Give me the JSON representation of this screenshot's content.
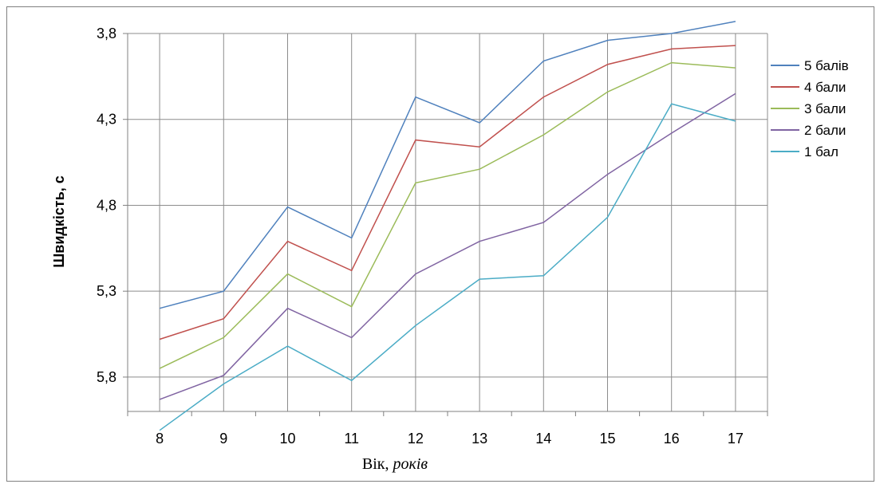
{
  "chart_data": {
    "type": "line",
    "x": [
      8,
      9,
      10,
      11,
      12,
      13,
      14,
      15,
      16,
      17
    ],
    "xlabel": "Вік, ",
    "xlabel_unit": "років",
    "ylabel": "Швидкість, с",
    "ylim": [
      6.0,
      3.8
    ],
    "y_reversed": true,
    "yticks": [
      "3,8",
      "4,3",
      "4,8",
      "5,3",
      "5,8"
    ],
    "ytick_values": [
      3.8,
      4.3,
      4.8,
      5.3,
      5.8
    ],
    "grid": true,
    "legend_position": "right",
    "series": [
      {
        "name": "5 балів",
        "color": "#4F81BD",
        "values": [
          5.4,
          5.3,
          4.81,
          4.99,
          4.17,
          4.32,
          3.96,
          3.84,
          3.8,
          3.73
        ]
      },
      {
        "name": "4 бали",
        "color": "#C0504D",
        "values": [
          5.58,
          5.46,
          5.01,
          5.18,
          4.42,
          4.46,
          4.17,
          3.98,
          3.89,
          3.87
        ]
      },
      {
        "name": "3 бали",
        "color": "#9BBB59",
        "values": [
          5.75,
          5.57,
          5.2,
          5.39,
          4.67,
          4.59,
          4.39,
          4.14,
          3.97,
          4.0
        ]
      },
      {
        "name": "2 бали",
        "color": "#8064A2",
        "values": [
          5.93,
          5.79,
          5.4,
          5.57,
          5.2,
          5.01,
          4.9,
          4.62,
          4.38,
          4.15
        ]
      },
      {
        "name": "1 бал",
        "color": "#4BACC6",
        "values": [
          6.11,
          5.84,
          5.62,
          5.82,
          5.5,
          5.23,
          5.21,
          4.87,
          4.21,
          4.31
        ]
      }
    ]
  }
}
